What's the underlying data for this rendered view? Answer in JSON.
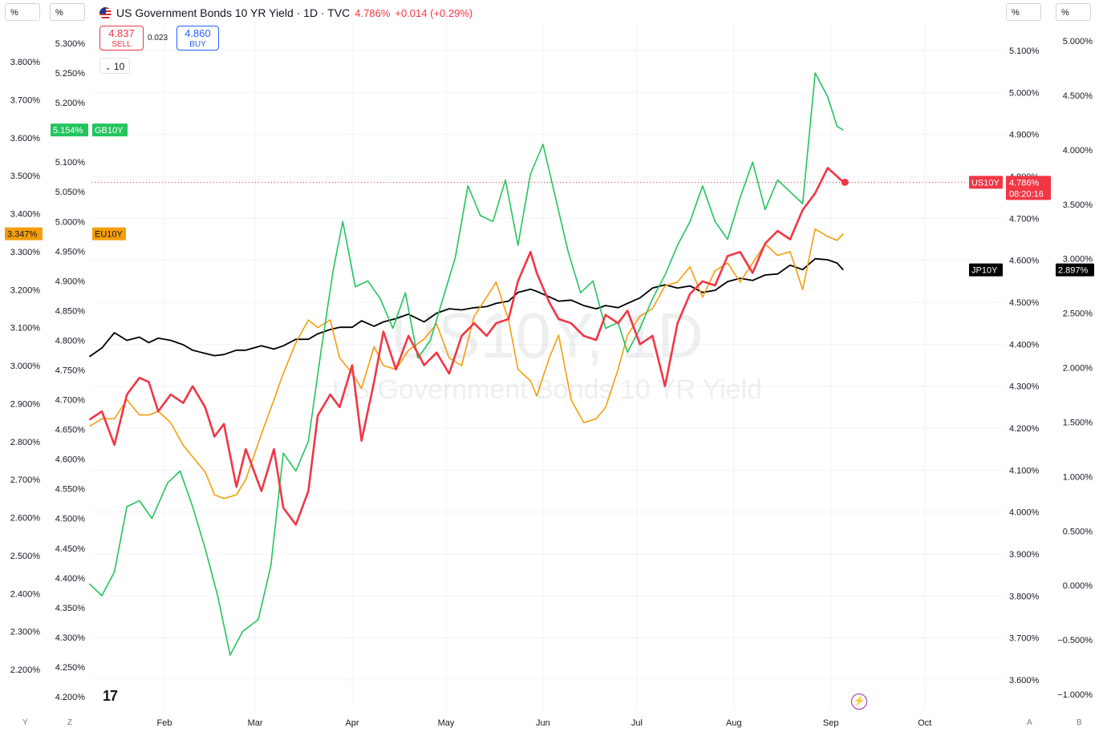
{
  "header": {
    "title": "US Government Bonds 10 YR Yield · 1D · TVC",
    "last_value": "4.786%",
    "change": "+0.014 (+0.29%)",
    "sell_price": "4.837",
    "sell_label": "SELL",
    "spread": "0.023",
    "buy_price": "4.860",
    "buy_label": "BUY",
    "lots": "10"
  },
  "scale_units": [
    "%",
    "%",
    "%",
    "%"
  ],
  "corner_labels": [
    "Y",
    "Z",
    "A",
    "B"
  ],
  "watermark": {
    "symbol": "US10Y, 1D",
    "name": "US Government Bonds 10 YR Yield"
  },
  "logo": "17",
  "colors": {
    "US10Y": "#f23645",
    "GB10Y": "#22c55e",
    "EU10Y": "#f59e0b",
    "JP10Y": "#000000",
    "grid": "#f0f3fa"
  },
  "chart_data": {
    "type": "line",
    "x_labels": [
      "Feb",
      "Mar",
      "Apr",
      "May",
      "Jun",
      "Jul",
      "Aug",
      "Sep",
      "Oct"
    ],
    "axes": {
      "far_left": {
        "ticks": [
          "3.800%",
          "3.700%",
          "3.600%",
          "3.500%",
          "3.400%",
          "3.300%",
          "3.200%",
          "3.100%",
          "3.000%",
          "2.900%",
          "2.800%",
          "2.700%",
          "2.600%",
          "2.500%",
          "2.400%",
          "2.300%",
          "2.200%"
        ],
        "range": [
          2.2,
          3.8
        ],
        "series": "EU10Y"
      },
      "left": {
        "ticks": [
          "5.300%",
          "5.250%",
          "5.200%",
          "5.150%",
          "5.100%",
          "5.050%",
          "5.000%",
          "4.950%",
          "4.900%",
          "4.850%",
          "4.800%",
          "4.750%",
          "4.700%",
          "4.650%",
          "4.600%",
          "4.550%",
          "4.500%",
          "4.450%",
          "4.400%",
          "4.350%",
          "4.300%",
          "4.250%",
          "4.200%"
        ],
        "range": [
          4.2,
          5.3
        ],
        "series": "GB10Y"
      },
      "right": {
        "ticks": [
          "5.100%",
          "5.000%",
          "4.900%",
          "4.800%",
          "4.700%",
          "4.600%",
          "4.500%",
          "4.400%",
          "4.300%",
          "4.200%",
          "4.100%",
          "4.000%",
          "3.900%",
          "3.800%",
          "3.700%",
          "3.600%"
        ],
        "range": [
          3.6,
          5.1
        ],
        "series": "US10Y"
      },
      "far_right": {
        "ticks": [
          "5.000%",
          "4.500%",
          "4.000%",
          "3.500%",
          "3.000%",
          "2.500%",
          "2.000%",
          "1.500%",
          "1.000%",
          "0.500%",
          "0.000%",
          "−0.500%",
          "−1.000%"
        ],
        "range": [
          -1.0,
          5.0
        ],
        "series": "JP10Y"
      }
    },
    "series": [
      {
        "name": "US10Y",
        "axis": "right",
        "color": "#f23645",
        "last_label": "4.786%",
        "countdown": "08:20:16",
        "points": [
          [
            "01-08",
            4.22
          ],
          [
            "01-12",
            4.24
          ],
          [
            "01-16",
            4.16
          ],
          [
            "01-20",
            4.28
          ],
          [
            "01-24",
            4.32
          ],
          [
            "01-27",
            4.31
          ],
          [
            "01-30",
            4.24
          ],
          [
            "02-03",
            4.28
          ],
          [
            "02-07",
            4.26
          ],
          [
            "02-10",
            4.3
          ],
          [
            "02-14",
            4.25
          ],
          [
            "02-17",
            4.18
          ],
          [
            "02-20",
            4.21
          ],
          [
            "02-24",
            4.06
          ],
          [
            "02-27",
            4.15
          ],
          [
            "03-03",
            4.05
          ],
          [
            "03-07",
            4.15
          ],
          [
            "03-10",
            4.01
          ],
          [
            "03-14",
            3.97
          ],
          [
            "03-18",
            4.05
          ],
          [
            "03-21",
            4.23
          ],
          [
            "03-25",
            4.28
          ],
          [
            "03-28",
            4.25
          ],
          [
            "04-01",
            4.35
          ],
          [
            "04-04",
            4.17
          ],
          [
            "04-08",
            4.31
          ],
          [
            "04-11",
            4.43
          ],
          [
            "04-15",
            4.34
          ],
          [
            "04-19",
            4.42
          ],
          [
            "04-24",
            4.35
          ],
          [
            "04-28",
            4.38
          ],
          [
            "05-02",
            4.33
          ],
          [
            "05-06",
            4.42
          ],
          [
            "05-10",
            4.45
          ],
          [
            "05-14",
            4.42
          ],
          [
            "05-17",
            4.45
          ],
          [
            "05-21",
            4.46
          ],
          [
            "05-24",
            4.55
          ],
          [
            "05-28",
            4.62
          ],
          [
            "05-30",
            4.57
          ],
          [
            "06-03",
            4.5
          ],
          [
            "06-06",
            4.46
          ],
          [
            "06-10",
            4.45
          ],
          [
            "06-14",
            4.42
          ],
          [
            "06-18",
            4.41
          ],
          [
            "06-21",
            4.47
          ],
          [
            "06-25",
            4.45
          ],
          [
            "06-28",
            4.48
          ],
          [
            "07-02",
            4.4
          ],
          [
            "07-06",
            4.42
          ],
          [
            "07-10",
            4.3
          ],
          [
            "07-14",
            4.45
          ],
          [
            "07-18",
            4.52
          ],
          [
            "07-22",
            4.55
          ],
          [
            "07-26",
            4.54
          ],
          [
            "07-30",
            4.61
          ],
          [
            "08-03",
            4.62
          ],
          [
            "08-07",
            4.57
          ],
          [
            "08-11",
            4.64
          ],
          [
            "08-15",
            4.67
          ],
          [
            "08-19",
            4.65
          ],
          [
            "08-23",
            4.72
          ],
          [
            "08-27",
            4.76
          ],
          [
            "08-31",
            4.82
          ],
          [
            "09-03",
            4.8
          ],
          [
            "09-05",
            4.786
          ]
        ]
      },
      {
        "name": "GB10Y",
        "axis": "left",
        "color": "#22c55e",
        "last_label": "5.154%",
        "points": [
          [
            "01-08",
            4.39
          ],
          [
            "01-12",
            4.37
          ],
          [
            "01-16",
            4.41
          ],
          [
            "01-20",
            4.52
          ],
          [
            "01-24",
            4.53
          ],
          [
            "01-28",
            4.5
          ],
          [
            "02-02",
            4.56
          ],
          [
            "02-06",
            4.58
          ],
          [
            "02-10",
            4.52
          ],
          [
            "02-14",
            4.45
          ],
          [
            "02-18",
            4.37
          ],
          [
            "02-22",
            4.27
          ],
          [
            "02-26",
            4.31
          ],
          [
            "03-02",
            4.33
          ],
          [
            "03-06",
            4.42
          ],
          [
            "03-10",
            4.61
          ],
          [
            "03-14",
            4.58
          ],
          [
            "03-18",
            4.63
          ],
          [
            "03-22",
            4.78
          ],
          [
            "03-26",
            4.92
          ],
          [
            "03-29",
            5.0
          ],
          [
            "04-02",
            4.89
          ],
          [
            "04-06",
            4.9
          ],
          [
            "04-10",
            4.87
          ],
          [
            "04-14",
            4.82
          ],
          [
            "04-18",
            4.88
          ],
          [
            "04-22",
            4.77
          ],
          [
            "04-26",
            4.8
          ],
          [
            "04-30",
            4.87
          ],
          [
            "05-04",
            4.94
          ],
          [
            "05-08",
            5.06
          ],
          [
            "05-12",
            5.01
          ],
          [
            "05-16",
            5.0
          ],
          [
            "05-20",
            5.07
          ],
          [
            "05-24",
            4.96
          ],
          [
            "05-28",
            5.08
          ],
          [
            "06-01",
            5.13
          ],
          [
            "06-05",
            5.04
          ],
          [
            "06-09",
            4.95
          ],
          [
            "06-13",
            4.88
          ],
          [
            "06-17",
            4.9
          ],
          [
            "06-21",
            4.82
          ],
          [
            "06-25",
            4.83
          ],
          [
            "06-28",
            4.78
          ],
          [
            "07-02",
            4.82
          ],
          [
            "07-06",
            4.87
          ],
          [
            "07-10",
            4.91
          ],
          [
            "07-14",
            4.96
          ],
          [
            "07-18",
            5.0
          ],
          [
            "07-22",
            5.06
          ],
          [
            "07-26",
            5.0
          ],
          [
            "07-30",
            4.97
          ],
          [
            "08-03",
            5.04
          ],
          [
            "08-07",
            5.1
          ],
          [
            "08-11",
            5.02
          ],
          [
            "08-15",
            5.07
          ],
          [
            "08-19",
            5.05
          ],
          [
            "08-23",
            5.03
          ],
          [
            "08-27",
            5.25
          ],
          [
            "08-31",
            5.21
          ],
          [
            "09-03",
            5.16
          ],
          [
            "09-05",
            5.154
          ]
        ]
      },
      {
        "name": "EU10Y",
        "axis": "far_left",
        "color": "#f59e0b",
        "last_label": "3.347%",
        "points": [
          [
            "01-08",
            2.84
          ],
          [
            "01-12",
            2.86
          ],
          [
            "01-16",
            2.86
          ],
          [
            "01-20",
            2.91
          ],
          [
            "01-24",
            2.87
          ],
          [
            "01-27",
            2.87
          ],
          [
            "01-30",
            2.88
          ],
          [
            "02-03",
            2.85
          ],
          [
            "02-07",
            2.79
          ],
          [
            "02-10",
            2.76
          ],
          [
            "02-14",
            2.72
          ],
          [
            "02-17",
            2.66
          ],
          [
            "02-20",
            2.65
          ],
          [
            "02-24",
            2.66
          ],
          [
            "02-27",
            2.7
          ],
          [
            "03-03",
            2.82
          ],
          [
            "03-07",
            2.91
          ],
          [
            "03-10",
            2.98
          ],
          [
            "03-14",
            3.06
          ],
          [
            "03-18",
            3.12
          ],
          [
            "03-21",
            3.1
          ],
          [
            "03-25",
            3.12
          ],
          [
            "03-28",
            3.02
          ],
          [
            "04-01",
            2.98
          ],
          [
            "04-04",
            2.94
          ],
          [
            "04-08",
            3.05
          ],
          [
            "04-11",
            3.0
          ],
          [
            "04-15",
            2.99
          ],
          [
            "04-19",
            3.04
          ],
          [
            "04-24",
            3.07
          ],
          [
            "04-28",
            3.11
          ],
          [
            "05-02",
            3.02
          ],
          [
            "05-06",
            3.0
          ],
          [
            "05-10",
            3.13
          ],
          [
            "05-14",
            3.18
          ],
          [
            "05-17",
            3.22
          ],
          [
            "05-21",
            3.12
          ],
          [
            "05-24",
            2.99
          ],
          [
            "05-28",
            2.96
          ],
          [
            "05-30",
            2.92
          ],
          [
            "06-03",
            3.02
          ],
          [
            "06-06",
            3.08
          ],
          [
            "06-10",
            2.91
          ],
          [
            "06-14",
            2.85
          ],
          [
            "06-18",
            2.86
          ],
          [
            "06-21",
            2.89
          ],
          [
            "06-25",
            2.99
          ],
          [
            "06-28",
            3.08
          ],
          [
            "07-02",
            3.13
          ],
          [
            "07-06",
            3.15
          ],
          [
            "07-10",
            3.21
          ],
          [
            "07-14",
            3.22
          ],
          [
            "07-18",
            3.26
          ],
          [
            "07-22",
            3.18
          ],
          [
            "07-26",
            3.25
          ],
          [
            "07-30",
            3.27
          ],
          [
            "08-03",
            3.22
          ],
          [
            "08-07",
            3.27
          ],
          [
            "08-11",
            3.32
          ],
          [
            "08-15",
            3.29
          ],
          [
            "08-19",
            3.3
          ],
          [
            "08-23",
            3.2
          ],
          [
            "08-27",
            3.36
          ],
          [
            "08-31",
            3.34
          ],
          [
            "09-03",
            3.33
          ],
          [
            "09-05",
            3.347
          ]
        ]
      },
      {
        "name": "JP10Y",
        "axis": "far_right",
        "color": "#000000",
        "last_label": "2.897%",
        "points": [
          [
            "01-08",
            2.1
          ],
          [
            "01-12",
            2.18
          ],
          [
            "01-16",
            2.32
          ],
          [
            "01-20",
            2.25
          ],
          [
            "01-24",
            2.28
          ],
          [
            "01-27",
            2.23
          ],
          [
            "01-30",
            2.27
          ],
          [
            "02-03",
            2.25
          ],
          [
            "02-07",
            2.21
          ],
          [
            "02-10",
            2.16
          ],
          [
            "02-14",
            2.13
          ],
          [
            "02-17",
            2.11
          ],
          [
            "02-20",
            2.12
          ],
          [
            "02-24",
            2.16
          ],
          [
            "02-27",
            2.16
          ],
          [
            "03-03",
            2.2
          ],
          [
            "03-07",
            2.17
          ],
          [
            "03-10",
            2.2
          ],
          [
            "03-14",
            2.26
          ],
          [
            "03-18",
            2.26
          ],
          [
            "03-21",
            2.31
          ],
          [
            "03-25",
            2.35
          ],
          [
            "03-28",
            2.37
          ],
          [
            "04-01",
            2.37
          ],
          [
            "04-04",
            2.43
          ],
          [
            "04-08",
            2.38
          ],
          [
            "04-11",
            2.42
          ],
          [
            "04-15",
            2.45
          ],
          [
            "04-19",
            2.49
          ],
          [
            "04-24",
            2.42
          ],
          [
            "04-28",
            2.5
          ],
          [
            "05-02",
            2.54
          ],
          [
            "05-06",
            2.53
          ],
          [
            "05-10",
            2.55
          ],
          [
            "05-14",
            2.56
          ],
          [
            "05-17",
            2.59
          ],
          [
            "05-21",
            2.61
          ],
          [
            "05-24",
            2.69
          ],
          [
            "05-28",
            2.72
          ],
          [
            "05-30",
            2.7
          ],
          [
            "06-03",
            2.65
          ],
          [
            "06-06",
            2.61
          ],
          [
            "06-10",
            2.62
          ],
          [
            "06-14",
            2.57
          ],
          [
            "06-18",
            2.54
          ],
          [
            "06-21",
            2.57
          ],
          [
            "06-25",
            2.55
          ],
          [
            "06-28",
            2.59
          ],
          [
            "07-02",
            2.64
          ],
          [
            "07-06",
            2.73
          ],
          [
            "07-10",
            2.76
          ],
          [
            "07-14",
            2.73
          ],
          [
            "07-18",
            2.75
          ],
          [
            "07-22",
            2.69
          ],
          [
            "07-26",
            2.71
          ],
          [
            "07-30",
            2.79
          ],
          [
            "08-03",
            2.82
          ],
          [
            "08-07",
            2.8
          ],
          [
            "08-11",
            2.85
          ],
          [
            "08-15",
            2.86
          ],
          [
            "08-19",
            2.94
          ],
          [
            "08-23",
            2.9
          ],
          [
            "08-27",
            3.0
          ],
          [
            "08-31",
            2.99
          ],
          [
            "09-03",
            2.96
          ],
          [
            "09-05",
            2.897
          ]
        ]
      }
    ]
  }
}
